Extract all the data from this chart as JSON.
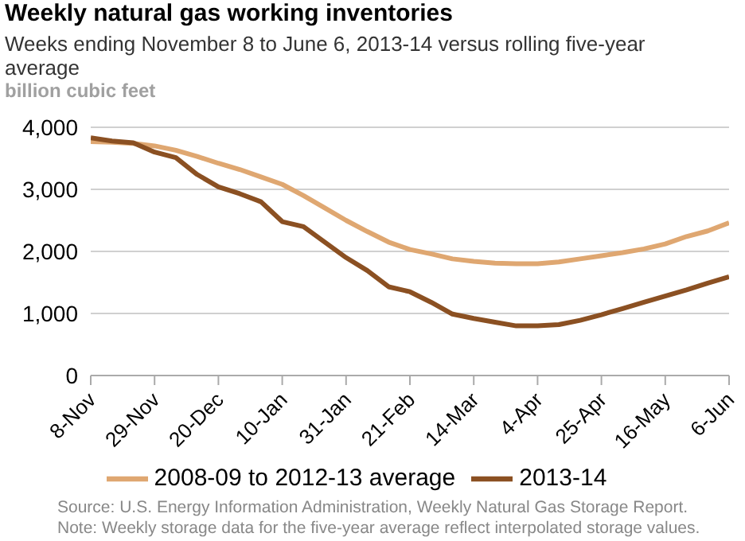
{
  "chart_data": {
    "type": "line",
    "title": "Weekly natural gas working inventories",
    "subtitle": "Weeks ending November 8 to June 6, 2013-14 versus rolling five-year average",
    "ylabel": "billion cubic feet",
    "categories": [
      "8-Nov",
      null,
      null,
      "29-Nov",
      null,
      null,
      "20-Dec",
      null,
      null,
      "10-Jan",
      null,
      null,
      "31-Jan",
      null,
      null,
      "21-Feb",
      null,
      null,
      "14-Mar",
      null,
      null,
      "4-Apr",
      null,
      null,
      "25-Apr",
      null,
      null,
      "16-May",
      null,
      null,
      "6-Jun"
    ],
    "series": [
      {
        "name": "2008-09 to 2012-13 average",
        "color": "#dfa771",
        "values": [
          3770,
          3760,
          3740,
          3700,
          3630,
          3530,
          3420,
          3320,
          3200,
          3080,
          2900,
          2700,
          2500,
          2320,
          2150,
          2030,
          1960,
          1880,
          1840,
          1810,
          1800,
          1800,
          1830,
          1880,
          1930,
          1980,
          2040,
          2120,
          2240,
          2330,
          2460
        ]
      },
      {
        "name": "2013-14",
        "color": "#8b5022",
        "values": [
          3830,
          3780,
          3750,
          3600,
          3510,
          3240,
          3040,
          2930,
          2800,
          2480,
          2400,
          2150,
          1900,
          1690,
          1430,
          1350,
          1180,
          990,
          920,
          860,
          800,
          800,
          820,
          890,
          980,
          1080,
          1180,
          1280,
          1380,
          1490,
          1590
        ]
      }
    ],
    "ylim": [
      0,
      4000
    ],
    "yticks": [
      {
        "value": 0,
        "label": "0"
      },
      {
        "value": 1000,
        "label": "1,000"
      },
      {
        "value": 2000,
        "label": "2,000"
      },
      {
        "value": 3000,
        "label": "3,000"
      },
      {
        "value": 4000,
        "label": "4,000"
      }
    ],
    "grid": "y",
    "legend": "bottom",
    "marker": "none",
    "line_style": "solid",
    "annotations": [
      "Source: U.S. Energy Information Administration, Weekly Natural Gas Storage Report.",
      "Note: Weekly storage data for the five-year average reflect interpolated storage values."
    ]
  }
}
